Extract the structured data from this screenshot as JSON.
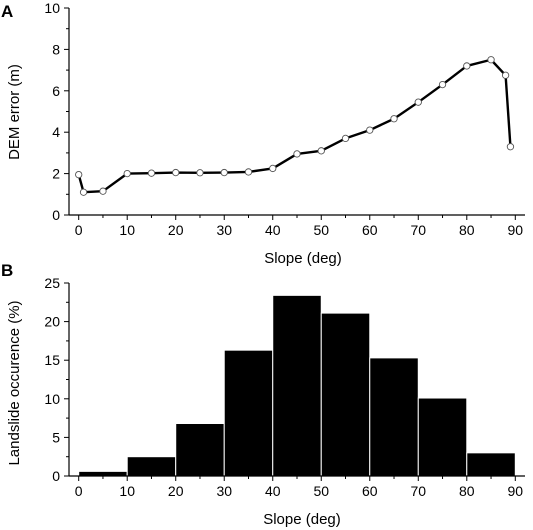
{
  "chart_data": [
    {
      "panel": "A",
      "type": "line",
      "title": "",
      "xlabel": "Slope (deg)",
      "ylabel": "DEM error (m)",
      "xlim": [
        -2,
        92
      ],
      "ylim": [
        0,
        10
      ],
      "xticks": [
        "0",
        "10",
        "20",
        "30",
        "40",
        "50",
        "60",
        "70",
        "80",
        "90"
      ],
      "yticks": [
        "0",
        "2",
        "4",
        "6",
        "8",
        "10"
      ],
      "grid": false,
      "series": [
        {
          "color": "#000000",
          "marker_fill": "#ffffff",
          "x": [
            0,
            1,
            5,
            10,
            15,
            20,
            25,
            30,
            35,
            40,
            45,
            50,
            55,
            60,
            65,
            70,
            75,
            80,
            85,
            88,
            89
          ],
          "y": [
            1.95,
            1.1,
            1.15,
            2.0,
            2.02,
            2.05,
            2.04,
            2.05,
            2.08,
            2.25,
            2.95,
            3.1,
            3.7,
            4.1,
            4.65,
            5.45,
            6.3,
            7.2,
            7.5,
            6.75,
            3.3
          ]
        }
      ]
    },
    {
      "panel": "B",
      "type": "bar",
      "title": "",
      "xlabel": "Slope (deg)",
      "ylabel": "Landslide occurence (%)",
      "xlim": [
        -2,
        92
      ],
      "ylim": [
        0,
        25
      ],
      "xticks": [
        "0",
        "10",
        "20",
        "30",
        "40",
        "50",
        "60",
        "70",
        "80",
        "90"
      ],
      "yticks": [
        "0",
        "5",
        "10",
        "15",
        "20",
        "25"
      ],
      "grid": false,
      "bar_color": "#000000",
      "bins": [
        [
          0,
          10
        ],
        [
          10,
          20
        ],
        [
          20,
          30
        ],
        [
          30,
          40
        ],
        [
          40,
          50
        ],
        [
          50,
          60
        ],
        [
          60,
          70
        ],
        [
          70,
          80
        ],
        [
          80,
          90
        ]
      ],
      "values": [
        0.6,
        2.5,
        6.8,
        16.3,
        23.4,
        21.1,
        15.3,
        10.1,
        3.0
      ]
    }
  ]
}
